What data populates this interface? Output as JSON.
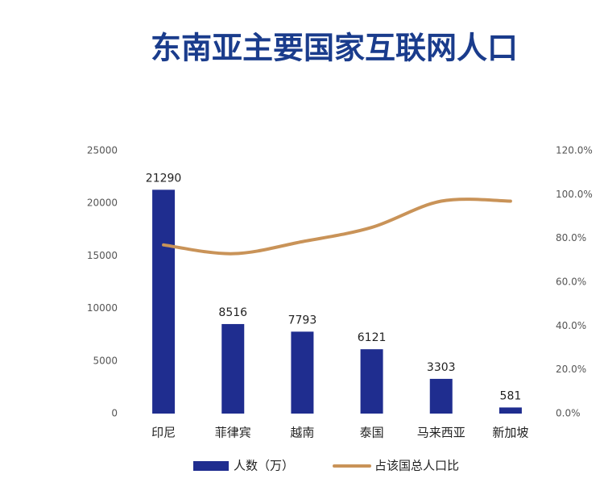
{
  "chart_data": {
    "type": "combo",
    "title": "东南亚主要国家互联网人口",
    "categories": [
      "印尼",
      "菲律宾",
      "越南",
      "泰国",
      "马来西亚",
      "新加坡"
    ],
    "series": [
      {
        "name": "人数（万）",
        "type": "bar",
        "color": "#1f2d8f",
        "values": [
          21290,
          8516,
          7793,
          6121,
          3303,
          581
        ]
      },
      {
        "name": "占该国总人口比",
        "type": "line",
        "axis": "y2",
        "color": "#c99358",
        "values": [
          77,
          73,
          78.5,
          85,
          97,
          97
        ]
      }
    ],
    "ylim": [
      0,
      25000
    ],
    "yticks": [
      0,
      5000,
      10000,
      15000,
      20000,
      25000
    ],
    "y2lim": [
      0,
      120
    ],
    "y2ticks": [
      {
        "value": 0,
        "label": "0.0%"
      },
      {
        "value": 20,
        "label": "20.0%"
      },
      {
        "value": 40,
        "label": "40.0%"
      },
      {
        "value": 60,
        "label": "60.0%"
      },
      {
        "value": 80,
        "label": "80.0%"
      },
      {
        "value": 100,
        "label": "100.0%"
      },
      {
        "value": 120,
        "label": "120.0%"
      }
    ],
    "grid": false,
    "value_labels_shown": true,
    "legend": "bottom"
  }
}
